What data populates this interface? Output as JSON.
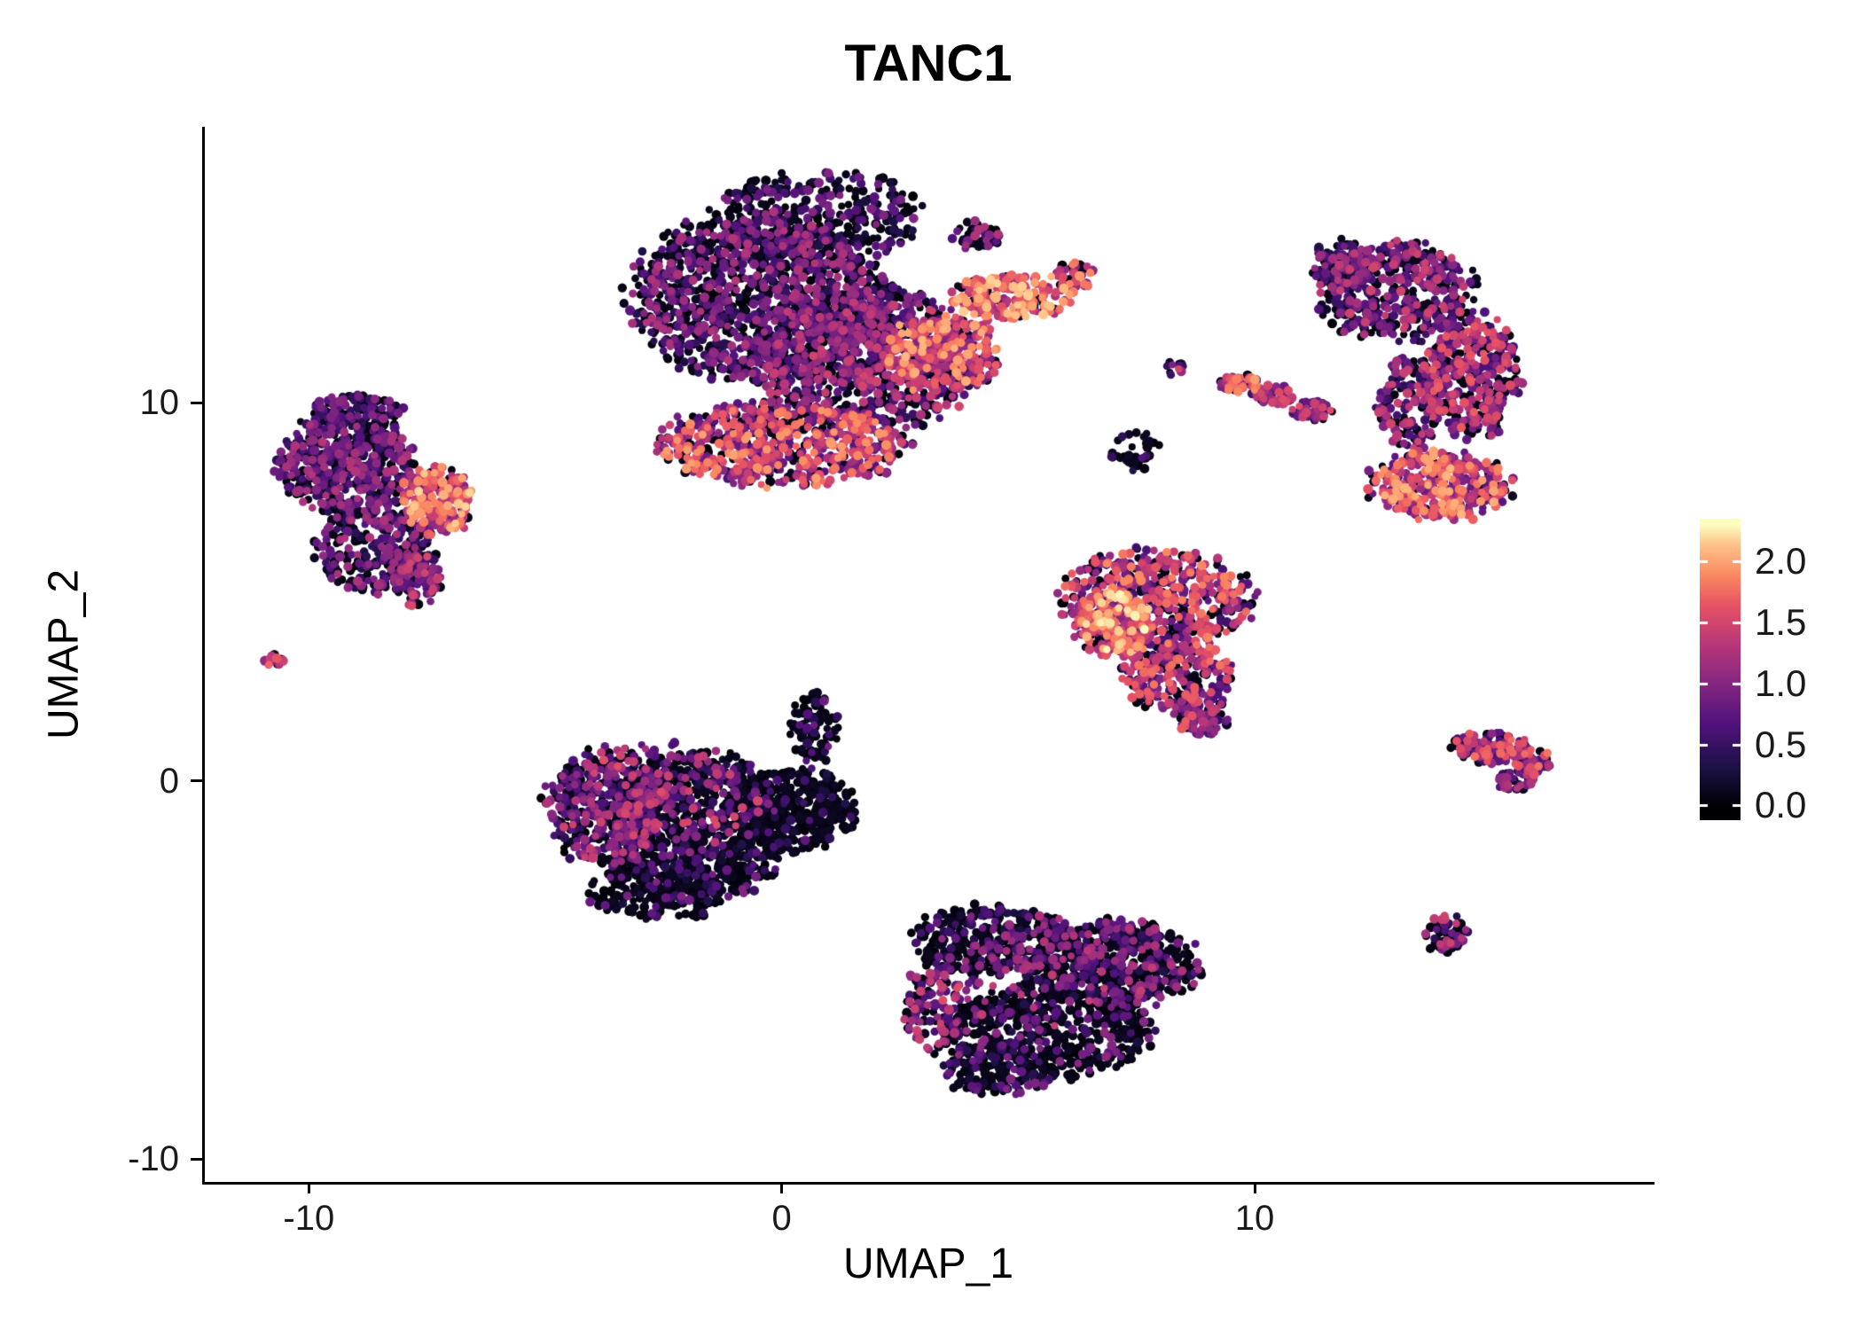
{
  "chart_data": {
    "type": "scatter",
    "title": "TANC1",
    "xlabel": "UMAP_1",
    "ylabel": "UMAP_2",
    "xlim": [
      -12.2,
      18.4
    ],
    "ylim": [
      -10.6,
      17.3
    ],
    "x_ticks": [
      -10,
      0,
      10
    ],
    "x_tick_labels": [
      "-10",
      "0",
      "10"
    ],
    "y_ticks": [
      -10,
      0,
      10
    ],
    "y_tick_labels": [
      "-10",
      "0",
      "10"
    ],
    "grid": false,
    "background": "#ffffff",
    "axis_color": "#000000",
    "tick_label_color": "#1a1a1a",
    "colormap": {
      "name": "magma",
      "vmax": 2.3,
      "stops": [
        [
          0,
          "#000004"
        ],
        [
          0.14,
          "#1d1147"
        ],
        [
          0.29,
          "#51127c"
        ],
        [
          0.43,
          "#822681"
        ],
        [
          0.57,
          "#b63679"
        ],
        [
          0.71,
          "#e65164"
        ],
        [
          0.82,
          "#fb8861"
        ],
        [
          0.93,
          "#fec287"
        ],
        [
          1,
          "#fcfdbf"
        ]
      ]
    },
    "legend": {
      "position": "right",
      "tick_values": [
        2.0,
        1.5,
        1.0,
        0.5,
        0.0
      ],
      "tick_labels": [
        "2.0",
        "1.5",
        "1.0",
        "0.5",
        "0.0"
      ],
      "bar_value_top": 2.35,
      "bar_value_bottom": -0.12
    },
    "seed": 42,
    "point_radius_px": [
      4.0,
      5.6
    ],
    "blob_format": [
      "cx",
      "cy",
      "rx",
      "ry",
      "n",
      "dark_fraction",
      "v_min",
      "v_max"
    ],
    "clusters": [
      {
        "name": "top-center",
        "blobs": [
          [
            -0.5,
            12.8,
            2.6,
            2.2,
            1300,
            0.5,
            0.3,
            1.3
          ],
          [
            1.8,
            11.2,
            2.2,
            1.9,
            900,
            0.4,
            0.4,
            1.5
          ],
          [
            0.0,
            8.9,
            2.6,
            1.1,
            700,
            0.22,
            0.6,
            2.0
          ],
          [
            3.4,
            11.3,
            1.2,
            1.0,
            300,
            0.2,
            0.8,
            2.1
          ],
          [
            4.9,
            12.8,
            1.3,
            0.6,
            220,
            0.15,
            1.0,
            2.2
          ],
          [
            6.2,
            13.4,
            0.4,
            0.35,
            40,
            0.2,
            1.0,
            2.0
          ],
          [
            0.8,
            14.9,
            2.2,
            1.2,
            350,
            0.65,
            0.2,
            1.0
          ],
          [
            4.1,
            14.4,
            0.5,
            0.4,
            50,
            0.45,
            0.3,
            1.3
          ]
        ]
      },
      {
        "name": "left",
        "blobs": [
          [
            -9.2,
            8.4,
            1.4,
            1.3,
            550,
            0.4,
            0.3,
            1.3
          ],
          [
            -8.6,
            6.2,
            1.2,
            1.2,
            300,
            0.45,
            0.3,
            1.3
          ],
          [
            -7.3,
            7.4,
            0.75,
            0.9,
            220,
            0.08,
            0.9,
            2.2
          ],
          [
            -9.0,
            9.8,
            1.0,
            0.4,
            120,
            0.5,
            0.3,
            1.1
          ],
          [
            -7.7,
            5.3,
            0.5,
            0.7,
            90,
            0.3,
            0.5,
            1.6
          ]
        ]
      },
      {
        "name": "far-left-dot",
        "blobs": [
          [
            -10.75,
            3.2,
            0.2,
            0.16,
            14,
            0.15,
            0.8,
            1.8
          ]
        ]
      },
      {
        "name": "center-left-dark",
        "blobs": [
          [
            -3.7,
            -0.7,
            1.3,
            1.5,
            420,
            0.45,
            0.4,
            1.5
          ],
          [
            -1.8,
            -1.2,
            1.9,
            1.9,
            900,
            0.82,
            0.2,
            1.0
          ],
          [
            0.3,
            -0.8,
            1.3,
            1.1,
            350,
            0.88,
            0.15,
            0.8
          ],
          [
            0.7,
            1.4,
            0.5,
            0.9,
            90,
            0.8,
            0.2,
            0.9
          ],
          [
            -2.5,
            -0.5,
            2.0,
            1.5,
            120,
            0.0,
            0.6,
            1.6
          ],
          [
            -2.6,
            -2.9,
            1.4,
            0.8,
            220,
            0.85,
            0.2,
            0.9
          ]
        ]
      },
      {
        "name": "mid-right-bright",
        "blobs": [
          [
            7.9,
            4.8,
            2.0,
            1.3,
            550,
            0.25,
            0.5,
            1.9
          ],
          [
            7.0,
            4.2,
            0.8,
            0.9,
            220,
            0.08,
            1.0,
            2.3
          ],
          [
            8.4,
            2.8,
            1.2,
            0.9,
            250,
            0.3,
            0.5,
            1.8
          ],
          [
            8.9,
            1.7,
            0.6,
            0.5,
            90,
            0.3,
            0.5,
            1.7
          ]
        ]
      },
      {
        "name": "bottom-dark",
        "blobs": [
          [
            4.4,
            -4.2,
            1.7,
            0.9,
            350,
            0.75,
            0.2,
            1.2
          ],
          [
            7.0,
            -4.8,
            1.9,
            1.1,
            500,
            0.7,
            0.3,
            1.3
          ],
          [
            5.6,
            -6.6,
            2.2,
            1.2,
            550,
            0.8,
            0.2,
            1.1
          ],
          [
            3.2,
            -6.0,
            0.6,
            1.2,
            110,
            0.35,
            0.5,
            1.6
          ],
          [
            5.8,
            -5.2,
            2.4,
            1.6,
            130,
            0.0,
            0.6,
            1.4
          ],
          [
            4.6,
            -7.6,
            1.2,
            0.7,
            160,
            0.75,
            0.2,
            1.0
          ]
        ]
      },
      {
        "name": "right-crescent",
        "blobs": [
          [
            13.0,
            12.9,
            1.6,
            1.3,
            450,
            0.4,
            0.4,
            1.5
          ],
          [
            14.6,
            10.7,
            1.0,
            1.6,
            400,
            0.3,
            0.5,
            1.7
          ],
          [
            13.9,
            7.8,
            1.5,
            0.9,
            380,
            0.15,
            0.7,
            2.1
          ],
          [
            11.8,
            13.6,
            0.6,
            0.7,
            110,
            0.5,
            0.3,
            1.2
          ],
          [
            13.3,
            10.0,
            0.7,
            1.2,
            150,
            0.35,
            0.4,
            1.5
          ]
        ]
      },
      {
        "name": "small-pair",
        "blobs": [
          [
            8.3,
            10.9,
            0.22,
            0.18,
            12,
            0.35,
            0.4,
            1.5
          ]
        ]
      },
      {
        "name": "small-dark",
        "blobs": [
          [
            7.5,
            8.7,
            0.5,
            0.55,
            40,
            0.85,
            0.1,
            0.7
          ]
        ]
      },
      {
        "name": "streak",
        "blobs": [
          [
            9.7,
            10.5,
            0.45,
            0.25,
            50,
            0.1,
            0.9,
            2.0
          ],
          [
            10.4,
            10.2,
            0.45,
            0.25,
            60,
            0.25,
            0.5,
            1.6
          ],
          [
            11.2,
            9.8,
            0.45,
            0.25,
            50,
            0.25,
            0.5,
            1.6
          ]
        ]
      },
      {
        "name": "right-arrow",
        "blobs": [
          [
            15.0,
            0.9,
            0.85,
            0.4,
            140,
            0.3,
            0.5,
            1.8
          ],
          [
            15.9,
            0.5,
            0.4,
            0.35,
            60,
            0.25,
            0.6,
            1.9
          ],
          [
            15.5,
            0.0,
            0.4,
            0.25,
            40,
            0.35,
            0.4,
            1.4
          ]
        ]
      },
      {
        "name": "small-bottom-right",
        "blobs": [
          [
            14.0,
            -4.0,
            0.5,
            0.5,
            60,
            0.55,
            0.3,
            1.5
          ]
        ]
      }
    ]
  }
}
